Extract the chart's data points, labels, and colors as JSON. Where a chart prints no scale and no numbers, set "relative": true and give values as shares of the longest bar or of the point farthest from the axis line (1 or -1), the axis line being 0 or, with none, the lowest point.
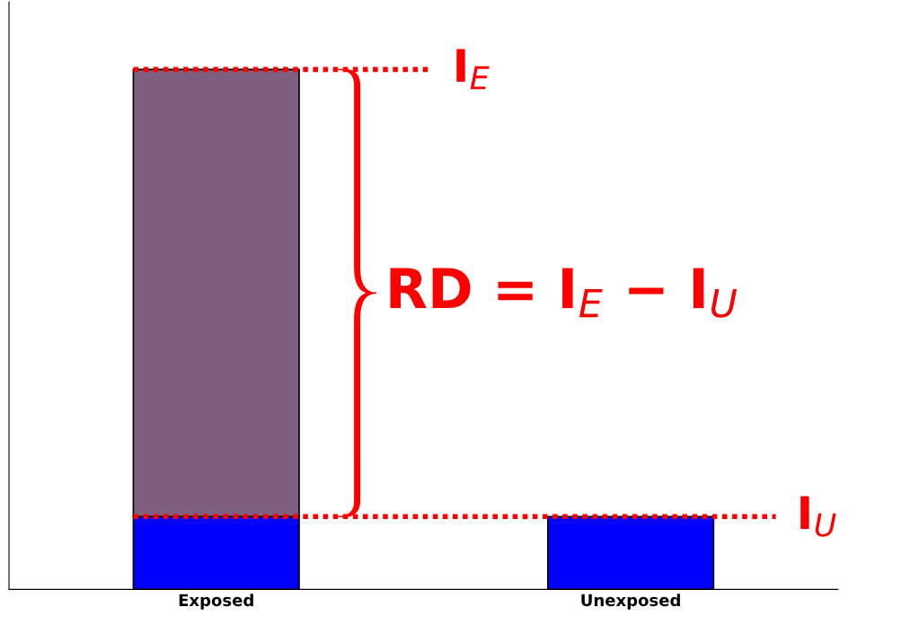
{
  "chart_data": {
    "type": "bar",
    "relative": true,
    "stacked": true,
    "categories": [
      "Exposed",
      "Unexposed"
    ],
    "series": [
      {
        "color": "#0000ff",
        "values": [
          0.14,
          0.14
        ]
      },
      {
        "color": "#7f5f7f",
        "values": [
          0.86,
          null
        ]
      }
    ],
    "ref_lines": [
      {
        "axis": "y",
        "value": 1,
        "label": "I$_{E}$",
        "color": "#ff0000",
        "line_style": "dotted"
      },
      {
        "axis": "y",
        "value": 0.14,
        "label": "I$_{U}$",
        "color": "#ff0000",
        "line_style": "dotted"
      }
    ],
    "annotations": [
      "RD = I$_{E}$ − I$_{U}$"
    ],
    "grid": false
  }
}
